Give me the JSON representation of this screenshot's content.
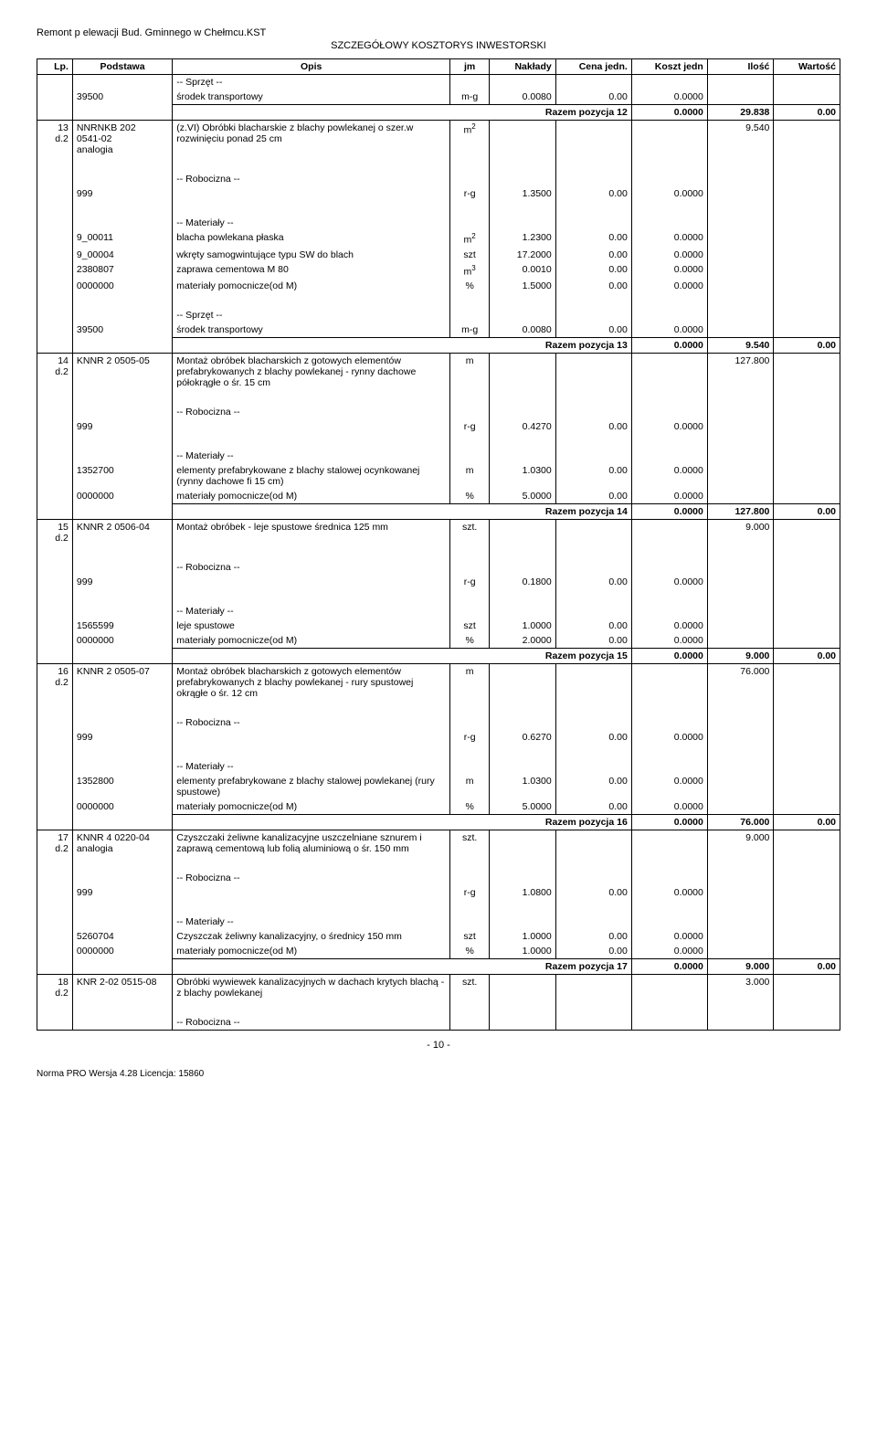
{
  "header": {
    "line1": "Remont p elewacji Bud. Gminnego w Chełmcu.KST",
    "line2": "SZCZEGÓŁOWY KOSZTORYS INWESTORSKI"
  },
  "columns": {
    "lp": "Lp.",
    "podstawa": "Podstawa",
    "opis": "Opis",
    "jm": "jm",
    "naklady": "Nakłady",
    "cena": "Cena jedn.",
    "koszt": "Koszt jedn",
    "ilosc": "Ilość",
    "wartosc": "Wartość"
  },
  "labels": {
    "sprzet": "-- Sprzęt --",
    "robocizna": "-- Robocizna --",
    "materialy": "-- Materiały --",
    "razem": "Razem pozycja"
  },
  "rows": [
    {
      "type": "sprzet",
      "podstawa": "39500",
      "opis": "środek transportowy",
      "jm": "m-g",
      "naklady": "0.0080",
      "cena": "0.00",
      "koszt": "0.0000"
    },
    {
      "type": "razem",
      "num": "12",
      "koszt": "0.0000",
      "ilosc": "29.838",
      "wartosc": "0.00"
    },
    {
      "type": "item",
      "lp": "13\nd.2",
      "podstawa": "NNRNKB 202\n0541-02\nanalogia",
      "opis": "(z.VI) Obróbki blacharskie z blachy powlekanej o szer.w rozwinięciu ponad 25 cm",
      "jm": "m2",
      "ilosc": "9.540"
    },
    {
      "type": "robocizna",
      "podstawa": "999",
      "jm": "r-g",
      "naklady": "1.3500",
      "cena": "0.00",
      "koszt": "0.0000"
    },
    {
      "type": "materialy",
      "rows": [
        {
          "podstawa": "9_00011",
          "opis": "blacha powlekana płaska",
          "jm": "m2",
          "naklady": "1.2300",
          "cena": "0.00",
          "koszt": "0.0000"
        },
        {
          "podstawa": "9_00004",
          "opis": "wkręty samogwintujące typu SW do blach",
          "jm": "szt",
          "naklady": "17.2000",
          "cena": "0.00",
          "koszt": "0.0000"
        },
        {
          "podstawa": "2380807",
          "opis": "zaprawa cementowa M 80",
          "jm": "m3",
          "naklady": "0.0010",
          "cena": "0.00",
          "koszt": "0.0000"
        },
        {
          "podstawa": "0000000",
          "opis": "materiały pomocnicze(od M)",
          "jm": "%",
          "naklady": "1.5000",
          "cena": "0.00",
          "koszt": "0.0000"
        }
      ]
    },
    {
      "type": "sprzet",
      "podstawa": "39500",
      "opis": "środek transportowy",
      "jm": "m-g",
      "naklady": "0.0080",
      "cena": "0.00",
      "koszt": "0.0000"
    },
    {
      "type": "razem",
      "num": "13",
      "koszt": "0.0000",
      "ilosc": "9.540",
      "wartosc": "0.00"
    },
    {
      "type": "item",
      "lp": "14\nd.2",
      "podstawa": "KNNR 2 0505-05",
      "opis": "Montaż obróbek blacharskich z gotowych elementów prefabrykowanych z blachy powlekanej - rynny dachowe półokrągłe o śr. 15 cm",
      "jm": "m",
      "ilosc": "127.800"
    },
    {
      "type": "robocizna",
      "podstawa": "999",
      "jm": "r-g",
      "naklady": "0.4270",
      "cena": "0.00",
      "koszt": "0.0000"
    },
    {
      "type": "materialy",
      "rows": [
        {
          "podstawa": "1352700",
          "opis": "elementy prefabrykowane z blachy stalowej ocynkowanej (rynny dachowe fi 15 cm)",
          "jm": "m",
          "naklady": "1.0300",
          "cena": "0.00",
          "koszt": "0.0000"
        },
        {
          "podstawa": "0000000",
          "opis": "materiały pomocnicze(od M)",
          "jm": "%",
          "naklady": "5.0000",
          "cena": "0.00",
          "koszt": "0.0000"
        }
      ]
    },
    {
      "type": "razem",
      "num": "14",
      "koszt": "0.0000",
      "ilosc": "127.800",
      "wartosc": "0.00"
    },
    {
      "type": "item",
      "lp": "15\nd.2",
      "podstawa": "KNNR 2 0506-04",
      "opis": "Montaż obróbek - leje spustowe średnica 125 mm",
      "jm": "szt.",
      "ilosc": "9.000"
    },
    {
      "type": "robocizna",
      "podstawa": "999",
      "jm": "r-g",
      "naklady": "0.1800",
      "cena": "0.00",
      "koszt": "0.0000"
    },
    {
      "type": "materialy",
      "rows": [
        {
          "podstawa": "1565599",
          "opis": "leje spustowe",
          "jm": "szt",
          "naklady": "1.0000",
          "cena": "0.00",
          "koszt": "0.0000"
        },
        {
          "podstawa": "0000000",
          "opis": "materiały pomocnicze(od M)",
          "jm": "%",
          "naklady": "2.0000",
          "cena": "0.00",
          "koszt": "0.0000"
        }
      ]
    },
    {
      "type": "razem",
      "num": "15",
      "koszt": "0.0000",
      "ilosc": "9.000",
      "wartosc": "0.00"
    },
    {
      "type": "item",
      "lp": "16\nd.2",
      "podstawa": "KNNR 2 0505-07",
      "opis": "Montaż obróbek blacharskich z gotowych elementów prefabrykowanych z blachy powlekanej - rury spustowej okrągłe o śr. 12 cm",
      "jm": "m",
      "ilosc": "76.000"
    },
    {
      "type": "robocizna",
      "podstawa": "999",
      "jm": "r-g",
      "naklady": "0.6270",
      "cena": "0.00",
      "koszt": "0.0000"
    },
    {
      "type": "materialy",
      "rows": [
        {
          "podstawa": "1352800",
          "opis": "elementy prefabrykowane z blachy stalowej powlekanej (rury spustowe)",
          "jm": "m",
          "naklady": "1.0300",
          "cena": "0.00",
          "koszt": "0.0000"
        },
        {
          "podstawa": "0000000",
          "opis": "materiały pomocnicze(od M)",
          "jm": "%",
          "naklady": "5.0000",
          "cena": "0.00",
          "koszt": "0.0000"
        }
      ]
    },
    {
      "type": "razem",
      "num": "16",
      "koszt": "0.0000",
      "ilosc": "76.000",
      "wartosc": "0.00"
    },
    {
      "type": "item",
      "lp": "17\nd.2",
      "podstawa": "KNNR 4 0220-04\nanalogia",
      "opis": "Czyszczaki żeliwne kanalizacyjne uszczelniane sznurem i zaprawą cementową lub folią aluminiową o śr. 150 mm",
      "jm": "szt.",
      "ilosc": "9.000"
    },
    {
      "type": "robocizna",
      "podstawa": "999",
      "jm": "r-g",
      "naklady": "1.0800",
      "cena": "0.00",
      "koszt": "0.0000"
    },
    {
      "type": "materialy",
      "rows": [
        {
          "podstawa": "5260704",
          "opis": "Czyszczak żeliwny kanalizacyjny, o średnicy 150 mm",
          "jm": "szt",
          "naklady": "1.0000",
          "cena": "0.00",
          "koszt": "0.0000"
        },
        {
          "podstawa": "0000000",
          "opis": "materiały pomocnicze(od M)",
          "jm": "%",
          "naklady": "1.0000",
          "cena": "0.00",
          "koszt": "0.0000"
        }
      ]
    },
    {
      "type": "razem",
      "num": "17",
      "koszt": "0.0000",
      "ilosc": "9.000",
      "wartosc": "0.00"
    },
    {
      "type": "item",
      "lp": "18\nd.2",
      "podstawa": "KNR 2-02 0515-08",
      "opis": "Obróbki wywiewek kanalizacyjnych w dachach krytych blachą - z blachy powlekanej",
      "jm": "szt.",
      "ilosc": "3.000"
    },
    {
      "type": "robocizna-only"
    }
  ],
  "page_num": "- 10 -",
  "footer_note": "Norma PRO Wersja 4.28 Licencja: 15860"
}
